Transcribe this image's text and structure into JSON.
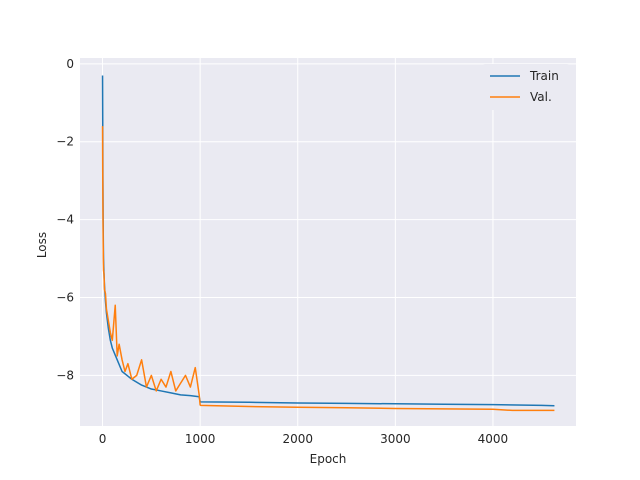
{
  "chart_data": {
    "type": "line",
    "title": "",
    "xlabel": "Epoch",
    "ylabel": "Loss",
    "xlim": [
      -231,
      4851
    ],
    "ylim": [
      -9.3,
      0.15
    ],
    "xticks": [
      0,
      1000,
      2000,
      3000,
      4000
    ],
    "xtick_labels": [
      "0",
      "1000",
      "2000",
      "3000",
      "4000"
    ],
    "yticks": [
      0,
      -2,
      -4,
      -6,
      -8
    ],
    "ytick_labels": [
      "0",
      "−2",
      "−4",
      "−6",
      "−8"
    ],
    "grid": true,
    "legend_position": "top-right",
    "colors": {
      "background": "#eaeaf2",
      "grid": "#ffffff"
    },
    "series": [
      {
        "name": "Train",
        "color": "#1f77b4",
        "x": [
          0,
          2,
          4,
          6,
          8,
          10,
          15,
          20,
          30,
          40,
          60,
          80,
          100,
          150,
          200,
          300,
          400,
          500,
          600,
          700,
          800,
          900,
          990,
          1000,
          1005,
          1500,
          2000,
          2500,
          3000,
          3500,
          4000,
          4500,
          4630
        ],
        "y": [
          -0.3,
          -1.5,
          -3.0,
          -4.0,
          -4.6,
          -5.0,
          -5.4,
          -5.7,
          -6.1,
          -6.4,
          -6.8,
          -7.1,
          -7.3,
          -7.6,
          -7.9,
          -8.1,
          -8.25,
          -8.35,
          -8.4,
          -8.45,
          -8.5,
          -8.52,
          -8.55,
          -8.67,
          -8.68,
          -8.69,
          -8.71,
          -8.72,
          -8.73,
          -8.74,
          -8.75,
          -8.77,
          -8.78
        ]
      },
      {
        "name": "Val.",
        "color": "#ff7f0e",
        "x": [
          0,
          2,
          4,
          6,
          8,
          10,
          15,
          20,
          30,
          40,
          60,
          80,
          100,
          130,
          150,
          170,
          200,
          230,
          260,
          300,
          350,
          400,
          450,
          500,
          550,
          600,
          650,
          700,
          750,
          800,
          850,
          900,
          950,
          990,
          1000,
          1005,
          1500,
          2000,
          2500,
          3000,
          3500,
          4000,
          4200,
          4630
        ],
        "y": [
          -1.6,
          -2.8,
          -3.8,
          -4.5,
          -5.0,
          -5.3,
          -5.4,
          -5.8,
          -5.9,
          -6.3,
          -6.6,
          -6.9,
          -7.1,
          -6.2,
          -7.5,
          -7.2,
          -7.6,
          -7.9,
          -7.7,
          -8.1,
          -8.0,
          -7.6,
          -8.3,
          -8.0,
          -8.4,
          -8.1,
          -8.3,
          -7.9,
          -8.4,
          -8.2,
          -8.0,
          -8.3,
          -7.8,
          -8.5,
          -8.76,
          -8.77,
          -8.8,
          -8.82,
          -8.83,
          -8.85,
          -8.86,
          -8.87,
          -8.9,
          -8.9
        ]
      }
    ]
  }
}
